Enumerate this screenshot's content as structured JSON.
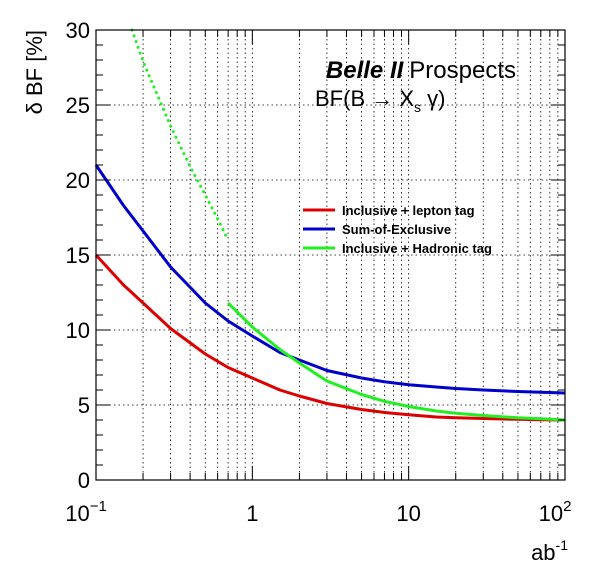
{
  "chart_data": {
    "type": "line",
    "title": "Prospects",
    "brand": "Belle II",
    "subtitle_parts": {
      "pre": "BF(B ",
      "arrow": "→",
      "x": " X",
      "sub": "s",
      "post": " γ)"
    },
    "xlabel": {
      "base": "ab",
      "sup": "-1"
    },
    "ylabel": "δ BF [%]",
    "xscale": "log",
    "xlim": [
      0.1,
      100
    ],
    "ylim": [
      0,
      30
    ],
    "grid": true,
    "legend_position": "upper-right",
    "x_ticks": [
      {
        "value": 0.1,
        "base": "10",
        "sup": "−1"
      },
      {
        "value": 1,
        "base": "1",
        "sup": ""
      },
      {
        "value": 10,
        "base": "10",
        "sup": ""
      },
      {
        "value": 100,
        "base": "10",
        "sup": "2"
      }
    ],
    "y_ticks": [
      0,
      5,
      10,
      15,
      20,
      25,
      30
    ],
    "series": [
      {
        "name": "Inclusive + lepton tag",
        "color": "#dd0000",
        "style": "solid",
        "x": [
          0.1,
          0.15,
          0.2,
          0.3,
          0.5,
          0.7,
          1.0,
          1.5,
          2,
          3,
          5,
          7,
          10,
          15,
          20,
          30,
          50,
          70,
          100
        ],
        "y": [
          15.0,
          13.0,
          11.8,
          10.1,
          8.4,
          7.5,
          6.8,
          6.0,
          5.6,
          5.1,
          4.7,
          4.5,
          4.35,
          4.2,
          4.15,
          4.1,
          4.05,
          4.02,
          4.0
        ]
      },
      {
        "name": "Sum-of-Exclusive",
        "color": "#0000cc",
        "style": "solid",
        "x": [
          0.1,
          0.15,
          0.2,
          0.3,
          0.5,
          0.7,
          1.0,
          1.5,
          2,
          3,
          5,
          7,
          10,
          15,
          20,
          30,
          50,
          70,
          100
        ],
        "y": [
          21.0,
          18.3,
          16.6,
          14.2,
          11.8,
          10.6,
          9.6,
          8.5,
          8.0,
          7.3,
          6.8,
          6.55,
          6.35,
          6.2,
          6.1,
          6.0,
          5.9,
          5.85,
          5.8
        ]
      },
      {
        "name": "Inclusive + Hadronic tag",
        "color": "#22ee22",
        "style": "solid",
        "x": [
          0.7,
          1.0,
          1.5,
          2,
          3,
          5,
          7,
          10,
          15,
          20,
          30,
          50,
          70,
          100
        ],
        "y": [
          11.8,
          10.2,
          8.7,
          7.8,
          6.6,
          5.7,
          5.25,
          4.9,
          4.6,
          4.45,
          4.3,
          4.15,
          4.08,
          4.0
        ]
      },
      {
        "name": "",
        "color": "#22ee22",
        "style": "dotted",
        "x": [
          0.17,
          0.2,
          0.3,
          0.4,
          0.5,
          0.6,
          0.7
        ],
        "y": [
          30.0,
          27.9,
          23.6,
          20.9,
          19.0,
          17.4,
          16.0
        ]
      }
    ]
  }
}
